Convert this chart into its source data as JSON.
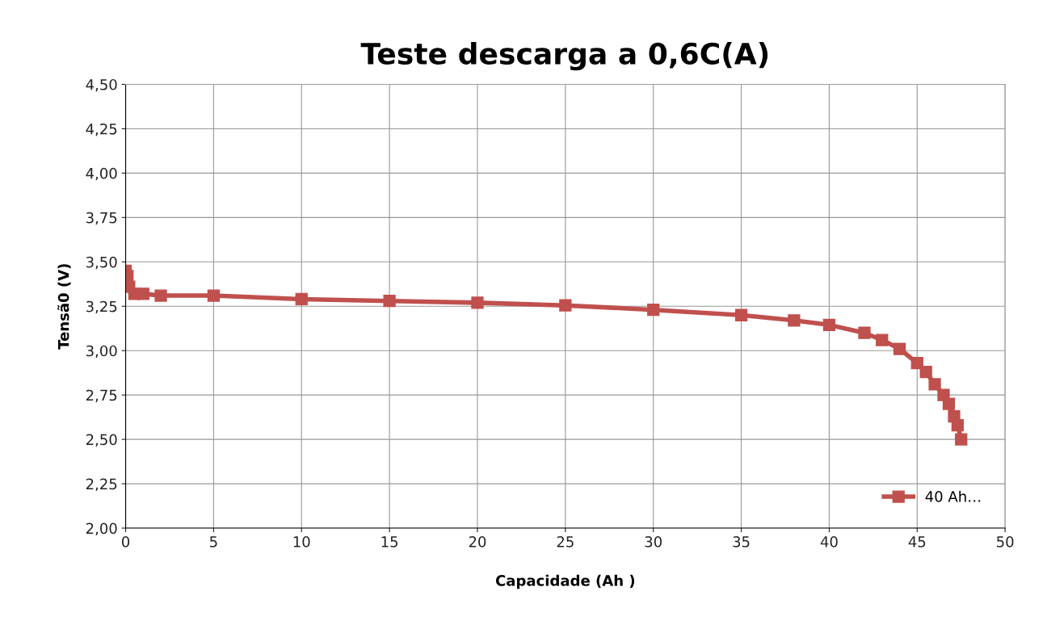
{
  "chart_data": {
    "type": "line",
    "title": "Teste descarga a 0,6C(A)",
    "xlabel": "Capacidade (Ah )",
    "ylabel": "Tensã0 (V)",
    "xlim": [
      0,
      50
    ],
    "xticks": [
      0,
      5,
      10,
      15,
      20,
      25,
      30,
      35,
      40,
      45,
      50
    ],
    "ylim": [
      2.0,
      4.5
    ],
    "yticks": [
      {
        "value": 2.0,
        "label": "2,00"
      },
      {
        "value": 2.25,
        "label": "2,25"
      },
      {
        "value": 2.5,
        "label": "2,50"
      },
      {
        "value": 2.75,
        "label": "2,75"
      },
      {
        "value": 3.0,
        "label": "3,00"
      },
      {
        "value": 3.25,
        "label": "3,25"
      },
      {
        "value": 3.5,
        "label": "3,50"
      },
      {
        "value": 3.75,
        "label": "3,75"
      },
      {
        "value": 4.0,
        "label": "4,00"
      },
      {
        "value": 4.25,
        "label": "4,25"
      },
      {
        "value": 4.5,
        "label": "4,50"
      }
    ],
    "grid": true,
    "legend": "bottom right",
    "marker": "square",
    "line_style": "solid",
    "series": [
      {
        "name": "40 Ah…",
        "color": "#c0504d",
        "x": [
          0,
          0.1,
          0.2,
          0.5,
          1,
          2,
          5,
          10,
          15,
          20,
          25,
          30,
          35,
          38,
          40,
          42,
          43,
          44,
          45,
          45.5,
          46,
          46.5,
          46.8,
          47.1,
          47.3,
          47.5
        ],
        "values": [
          3.45,
          3.42,
          3.36,
          3.32,
          3.32,
          3.31,
          3.31,
          3.29,
          3.28,
          3.27,
          3.255,
          3.23,
          3.2,
          3.17,
          3.145,
          3.1,
          3.06,
          3.01,
          2.93,
          2.88,
          2.81,
          2.75,
          2.7,
          2.63,
          2.58,
          2.5
        ]
      }
    ]
  }
}
